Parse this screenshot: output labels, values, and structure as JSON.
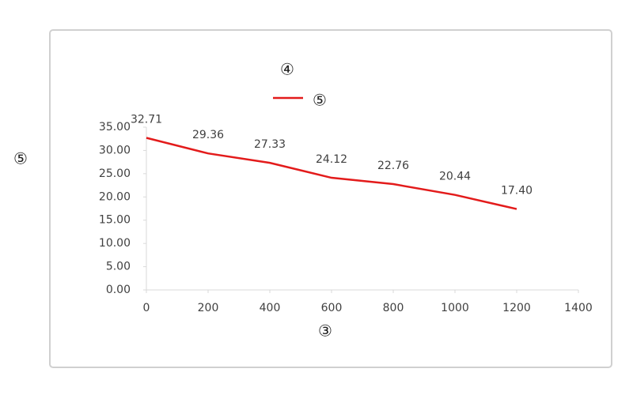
{
  "chart_data": {
    "type": "line",
    "title": "④",
    "x_label": "③",
    "y_label": "⑤",
    "x": [
      0,
      200,
      400,
      600,
      800,
      1000,
      1200
    ],
    "series": [
      {
        "name": "⑤",
        "color": "#e31b1b",
        "values": [
          32.71,
          29.36,
          27.33,
          24.12,
          22.76,
          20.44,
          17.4
        ],
        "value_labels": [
          "32.71",
          "29.36",
          "27.33",
          "24.12",
          "22.76",
          "20.44",
          "17.40"
        ]
      }
    ],
    "xlim": [
      0,
      1400
    ],
    "xticks": [
      0,
      200,
      400,
      600,
      800,
      1000,
      1200,
      1400
    ],
    "ylim": [
      0,
      35
    ],
    "yticks": [
      {
        "value": 0,
        "label": "0.00"
      },
      {
        "value": 5,
        "label": "5.00"
      },
      {
        "value": 10,
        "label": "10.00"
      },
      {
        "value": 15,
        "label": "15.00"
      },
      {
        "value": 20,
        "label": "20.00"
      },
      {
        "value": 25,
        "label": "25.00"
      },
      {
        "value": 30,
        "label": "30.00"
      },
      {
        "value": 35,
        "label": "35.00"
      }
    ],
    "grid": false,
    "legend": "top"
  }
}
